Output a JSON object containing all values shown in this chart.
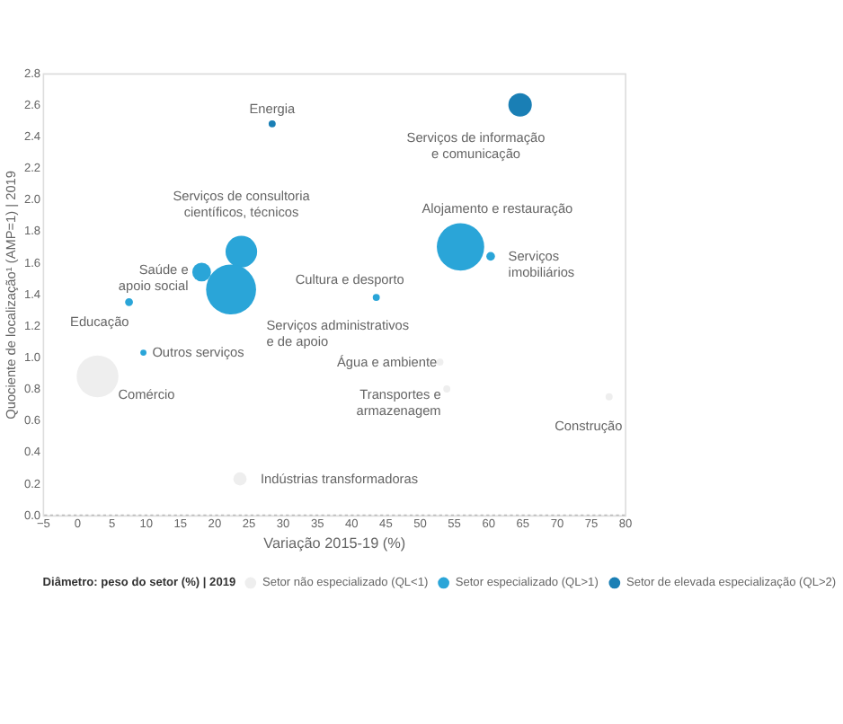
{
  "chart_data": {
    "type": "bubble",
    "xlabel": "Variação 2015-19 (%)",
    "ylabel": "Quociente de localização¹ (AMP=1) | 2019",
    "legend_title": "Diâmetro: peso do setor (%) | 2019",
    "xlim": [
      -5,
      80
    ],
    "xticks": [
      -5,
      0,
      5,
      10,
      15,
      20,
      25,
      30,
      35,
      40,
      45,
      50,
      55,
      60,
      65,
      70,
      75,
      80
    ],
    "ylim": [
      0,
      2.8
    ],
    "yticks": [
      {
        "value": 0,
        "label": "0.0"
      },
      {
        "value": 0.2,
        "label": "0.2"
      },
      {
        "value": 0.4,
        "label": "0.4"
      },
      {
        "value": 0.6,
        "label": "0.6"
      },
      {
        "value": 0.8,
        "label": "0.8"
      },
      {
        "value": 1,
        "label": "1.0"
      },
      {
        "value": 1.2,
        "label": "1.2"
      },
      {
        "value": 1.4,
        "label": "1.4"
      },
      {
        "value": 1.6,
        "label": "1.6"
      },
      {
        "value": 1.8,
        "label": "1.8"
      },
      {
        "value": 2,
        "label": "2.0"
      },
      {
        "value": 2.2,
        "label": "2.2"
      },
      {
        "value": 2.4,
        "label": "2.4"
      },
      {
        "value": 2.6,
        "label": "2.6"
      },
      {
        "value": 2.8,
        "label": "2.8"
      }
    ],
    "grid": false,
    "legend": "bottom",
    "series": [
      {
        "name": "Setor não especializado (QL<1)",
        "color": "#eeeeee",
        "x": [
          3,
          23.8,
          53,
          54,
          77.7
        ],
        "values": [
          0.88,
          0.23,
          0.97,
          0.8,
          0.75
        ],
        "sizes": [
          0.7,
          0.07,
          0.02,
          0.02,
          0.02
        ]
      },
      {
        "name": "Setor especializado (QL>1)",
        "color": "#2aa5d8",
        "x": [
          18.2,
          24,
          22.5,
          7.6,
          56,
          60.4,
          43.7,
          9.7
        ],
        "values": [
          1.54,
          1.67,
          1.43,
          1.35,
          1.7,
          1.64,
          1.38,
          1.03
        ],
        "sizes": [
          0.14,
          0.4,
          1,
          0.025,
          0.9,
          0.03,
          0.02,
          0.015
        ]
      },
      {
        "name": "Setor de elevada especialização (QL>2)",
        "color": "#1a7fb5",
        "x": [
          64.7,
          28.5
        ],
        "values": [
          2.6,
          2.48
        ],
        "sizes": [
          0.22,
          0.02
        ]
      }
    ],
    "annotations": [
      {
        "text": "Energia",
        "x": 28.5,
        "y": 2.48
      },
      {
        "text": "Serviços de informação\ne comunicação",
        "x": 64.7,
        "y": 2.6
      },
      {
        "text": "Serviços de consultoria\ncientíficos, técnicos",
        "x": 24,
        "y": 1.67
      },
      {
        "text": "Alojamento e restauração",
        "x": 56,
        "y": 1.7
      },
      {
        "text": "Serviços\nimobiliários",
        "x": 60.4,
        "y": 1.64
      },
      {
        "text": "Saúde e\napoio social",
        "x": 18.2,
        "y": 1.54
      },
      {
        "text": "Serviços administrativos\ne de apoio",
        "x": 22.5,
        "y": 1.43
      },
      {
        "text": "Educação",
        "x": 7.6,
        "y": 1.35
      },
      {
        "text": "Cultura e desporto",
        "x": 43.7,
        "y": 1.38
      },
      {
        "text": "Outros serviços",
        "x": 9.7,
        "y": 1.03
      },
      {
        "text": "Comércio",
        "x": 3,
        "y": 0.88
      },
      {
        "text": "Água e ambiente",
        "x": 53,
        "y": 0.97
      },
      {
        "text": "Transportes e\narmazenagem",
        "x": 54,
        "y": 0.8
      },
      {
        "text": "Construção",
        "x": 77.7,
        "y": 0.75
      },
      {
        "text": "Indústrias transformadoras",
        "x": 23.8,
        "y": 0.23
      }
    ]
  }
}
